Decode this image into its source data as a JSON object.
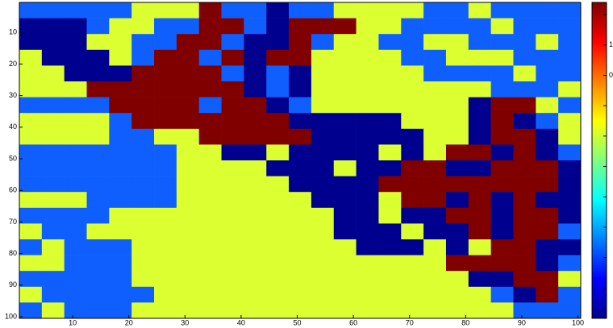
{
  "chart_data": {
    "type": "heatmap",
    "x": [
      2.5,
      6.5,
      10.5,
      14.5,
      18.5,
      22.5,
      26.5,
      30.5,
      34.5,
      38.5,
      42.5,
      46.5,
      50.5,
      54.5,
      58.5,
      62.5,
      66.5,
      70.5,
      74.5,
      78.5,
      82.5,
      86.5,
      90.5,
      94.5,
      98.5
    ],
    "y": [
      3,
      8,
      13,
      18,
      23,
      28,
      33,
      38,
      43,
      48,
      53,
      58,
      63,
      68,
      73,
      78,
      83,
      88,
      93,
      98
    ],
    "values": [
      [
        1,
        1,
        1,
        1,
        1,
        2,
        2,
        2,
        3,
        1,
        1,
        0,
        1,
        1,
        2,
        2,
        2,
        2,
        1,
        1,
        2,
        1,
        1,
        1,
        1
      ],
      [
        0,
        0,
        0,
        1,
        2,
        2,
        1,
        1,
        3,
        3,
        1,
        0,
        3,
        3,
        3,
        2,
        2,
        1,
        1,
        1,
        1,
        2,
        1,
        1,
        1
      ],
      [
        0,
        0,
        0,
        2,
        2,
        1,
        1,
        3,
        3,
        1,
        0,
        0,
        3,
        1,
        2,
        2,
        1,
        1,
        2,
        2,
        1,
        1,
        1,
        2,
        1
      ],
      [
        2,
        0,
        0,
        0,
        2,
        1,
        3,
        3,
        1,
        3,
        0,
        3,
        3,
        2,
        2,
        2,
        2,
        1,
        1,
        2,
        2,
        2,
        1,
        1,
        1
      ],
      [
        2,
        2,
        0,
        0,
        0,
        3,
        3,
        3,
        3,
        1,
        0,
        1,
        0,
        2,
        2,
        2,
        2,
        2,
        1,
        1,
        1,
        1,
        2,
        1,
        1
      ],
      [
        2,
        2,
        2,
        3,
        3,
        3,
        3,
        3,
        3,
        3,
        0,
        1,
        0,
        2,
        2,
        2,
        2,
        2,
        2,
        2,
        2,
        1,
        1,
        1,
        2
      ],
      [
        1,
        1,
        1,
        1,
        3,
        3,
        3,
        3,
        1,
        3,
        3,
        0,
        1,
        2,
        2,
        2,
        2,
        2,
        2,
        2,
        0,
        3,
        3,
        2,
        1
      ],
      [
        2,
        2,
        2,
        2,
        1,
        3,
        3,
        3,
        3,
        3,
        3,
        3,
        0,
        0,
        0,
        0,
        0,
        2,
        2,
        2,
        0,
        3,
        0,
        1,
        2
      ],
      [
        2,
        2,
        2,
        2,
        1,
        1,
        2,
        2,
        3,
        3,
        3,
        3,
        3,
        0,
        0,
        0,
        0,
        0,
        2,
        2,
        0,
        3,
        3,
        0,
        2
      ],
      [
        1,
        1,
        1,
        1,
        1,
        1,
        1,
        2,
        2,
        0,
        0,
        2,
        0,
        0,
        0,
        0,
        2,
        0,
        2,
        3,
        3,
        0,
        3,
        0,
        1
      ],
      [
        1,
        1,
        1,
        1,
        1,
        1,
        1,
        2,
        2,
        2,
        2,
        0,
        0,
        0,
        2,
        0,
        0,
        3,
        3,
        0,
        0,
        3,
        3,
        3,
        0
      ],
      [
        1,
        1,
        1,
        1,
        1,
        1,
        1,
        2,
        2,
        2,
        2,
        2,
        0,
        0,
        0,
        0,
        3,
        3,
        3,
        3,
        3,
        3,
        3,
        3,
        0
      ],
      [
        2,
        2,
        2,
        1,
        1,
        1,
        1,
        2,
        2,
        2,
        2,
        2,
        2,
        0,
        0,
        0,
        2,
        3,
        3,
        0,
        3,
        0,
        3,
        0,
        0
      ],
      [
        1,
        1,
        1,
        1,
        2,
        2,
        2,
        2,
        2,
        2,
        2,
        2,
        2,
        2,
        0,
        0,
        2,
        0,
        0,
        3,
        3,
        0,
        3,
        3,
        0
      ],
      [
        2,
        1,
        1,
        2,
        2,
        2,
        2,
        2,
        2,
        2,
        2,
        2,
        2,
        2,
        0,
        0,
        0,
        2,
        0,
        0,
        3,
        0,
        3,
        3,
        1
      ],
      [
        1,
        2,
        1,
        1,
        1,
        2,
        2,
        2,
        2,
        2,
        2,
        2,
        2,
        2,
        2,
        0,
        0,
        0,
        2,
        0,
        2,
        3,
        3,
        0,
        0
      ],
      [
        2,
        2,
        1,
        1,
        1,
        2,
        2,
        2,
        2,
        2,
        2,
        2,
        2,
        2,
        2,
        2,
        2,
        2,
        2,
        3,
        3,
        3,
        3,
        0,
        1
      ],
      [
        1,
        1,
        1,
        1,
        1,
        2,
        2,
        2,
        2,
        2,
        2,
        2,
        2,
        2,
        2,
        2,
        2,
        2,
        2,
        2,
        0,
        0,
        3,
        3,
        2
      ],
      [
        2,
        1,
        1,
        1,
        1,
        1,
        2,
        2,
        2,
        2,
        2,
        2,
        2,
        2,
        2,
        2,
        2,
        2,
        2,
        2,
        2,
        1,
        0,
        3,
        1
      ],
      [
        1,
        2,
        1,
        1,
        1,
        2,
        2,
        2,
        2,
        2,
        2,
        2,
        2,
        2,
        2,
        2,
        2,
        2,
        2,
        2,
        2,
        2,
        1,
        1,
        1
      ]
    ],
    "colors": [
      "#00008f",
      "#0f5fff",
      "#dcff32",
      "#800000"
    ],
    "xlim": [
      0.5,
      100.5
    ],
    "ylim": [
      0.5,
      100.5
    ],
    "y_reversed": true,
    "xticks": [
      10,
      20,
      30,
      40,
      50,
      60,
      70,
      80,
      90,
      100
    ],
    "yticks": [
      10,
      20,
      30,
      40,
      50,
      60,
      70,
      80,
      90,
      100
    ],
    "colorbar": {
      "ylim": [
        0.1,
        1.14
      ],
      "ticks": [
        0.2,
        0.3,
        0.4,
        0.5,
        0.6,
        0.7,
        0.8,
        0.9,
        1.0,
        1.1
      ],
      "tick_labels": [
        {
          "value": 1.0,
          "label": "1"
        },
        {
          "value": 0.9,
          "label": "0"
        }
      ]
    }
  }
}
